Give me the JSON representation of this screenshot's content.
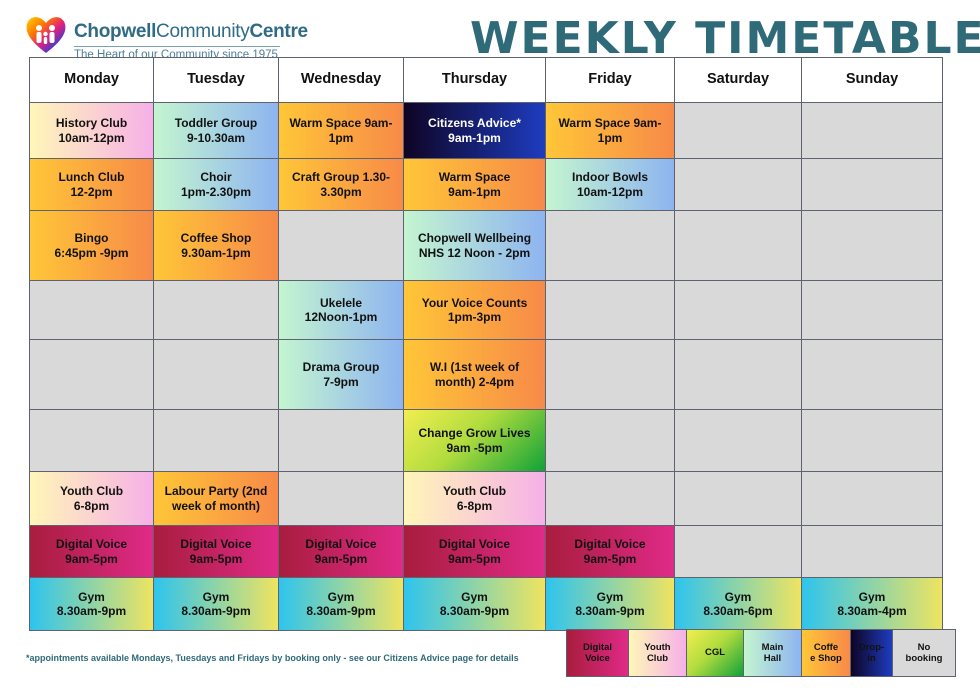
{
  "header": {
    "logo_name_bold": "Chopwell",
    "logo_name_rest": "Community",
    "logo_name_end": "Centre",
    "logo_tagline": "The Heart of our Community since 1975",
    "title": "WEEKLY TIMETABLE"
  },
  "timetable": {
    "days": [
      "Monday",
      "Tuesday",
      "Wednesday",
      "Thursday",
      "Friday",
      "Saturday",
      "Sunday"
    ],
    "rows": [
      [
        [
          "History Club\n10am-12pm",
          "youth"
        ],
        [
          "Toddler Group\n9-10.30am",
          "main"
        ],
        [
          "Warm Space 9am-\n1pm",
          "coffee"
        ],
        [
          "Citizens Advice*\n9am-1pm",
          "dropin"
        ],
        [
          "Warm Space 9am-\n1pm",
          "coffee"
        ],
        [
          "",
          "empty"
        ],
        [
          "",
          "empty"
        ]
      ],
      [
        [
          "Lunch Club\n12-2pm",
          "coffee"
        ],
        [
          "Choir\n1pm-2.30pm",
          "main"
        ],
        [
          "Craft Group 1.30-\n3.30pm",
          "coffee"
        ],
        [
          "Warm Space\n9am-1pm",
          "coffee"
        ],
        [
          "Indoor Bowls\n10am-12pm",
          "main"
        ],
        [
          "",
          "empty"
        ],
        [
          "",
          "empty"
        ]
      ],
      [
        [
          "Bingo\n6:45pm -9pm",
          "coffee"
        ],
        [
          "Coffee Shop\n9.30am-1pm",
          "coffee"
        ],
        [
          "",
          "empty"
        ],
        [
          "Chopwell Wellbeing\nNHS 12 Noon - 2pm",
          "main"
        ],
        [
          "",
          "empty"
        ],
        [
          "",
          "empty"
        ],
        [
          "",
          "empty"
        ]
      ],
      [
        [
          "",
          "empty"
        ],
        [
          "",
          "empty"
        ],
        [
          "Ukelele\n12Noon-1pm",
          "main"
        ],
        [
          "Your Voice Counts\n1pm-3pm",
          "coffee"
        ],
        [
          "",
          "empty"
        ],
        [
          "",
          "empty"
        ],
        [
          "",
          "empty"
        ]
      ],
      [
        [
          "",
          "empty"
        ],
        [
          "",
          "empty"
        ],
        [
          "Drama Group\n7-9pm",
          "main"
        ],
        [
          "W.I (1st week of\nmonth)  2-4pm",
          "coffee"
        ],
        [
          "",
          "empty"
        ],
        [
          "",
          "empty"
        ],
        [
          "",
          "empty"
        ]
      ],
      [
        [
          "",
          "empty"
        ],
        [
          "",
          "empty"
        ],
        [
          "",
          "empty"
        ],
        [
          "Change Grow Lives\n9am -5pm",
          "cgl"
        ],
        [
          "",
          "empty"
        ],
        [
          "",
          "empty"
        ],
        [
          "",
          "empty"
        ]
      ],
      [
        [
          "Youth Club\n6-8pm",
          "youth"
        ],
        [
          "Labour Party (2nd\nweek of month)",
          "coffee"
        ],
        [
          "",
          "empty"
        ],
        [
          "Youth Club\n6-8pm",
          "youth"
        ],
        [
          "",
          "empty"
        ],
        [
          "",
          "empty"
        ],
        [
          "",
          "empty"
        ]
      ],
      [
        [
          "Digital Voice\n9am-5pm",
          "digital"
        ],
        [
          "Digital Voice\n9am-5pm",
          "digital"
        ],
        [
          "Digital Voice\n9am-5pm",
          "digital"
        ],
        [
          "Digital Voice\n9am-5pm",
          "digital"
        ],
        [
          "Digital Voice\n9am-5pm",
          "digital"
        ],
        [
          "",
          "empty"
        ],
        [
          "",
          "empty"
        ]
      ],
      [
        [
          "Gym\n8.30am-9pm",
          "gym"
        ],
        [
          "Gym\n8.30am-9pm",
          "gym"
        ],
        [
          "Gym\n8.30am-9pm",
          "gym"
        ],
        [
          "Gym\n8.30am-9pm",
          "gym"
        ],
        [
          "Gym\n8.30am-9pm",
          "gym"
        ],
        [
          "Gym\n8.30am-6pm",
          "gym"
        ],
        [
          "Gym\n8.30am-4pm",
          "gym"
        ]
      ]
    ]
  },
  "footnote": "*appointments available Mondays, Tuesdays and Fridays by booking only - see our Citizens Advice page for details",
  "legend": [
    {
      "label": "Digital\nVoice",
      "category": "digital"
    },
    {
      "label": "Youth\nClub",
      "category": "youth"
    },
    {
      "label": "CGL",
      "category": "cgl"
    },
    {
      "label": "Main\nHall",
      "category": "main"
    },
    {
      "label": "Coffe\ne Shop",
      "category": "coffee"
    },
    {
      "label": "Drop-\nin",
      "category": "dropin"
    },
    {
      "label": "No\nbooking",
      "category": "empty"
    }
  ],
  "colors": {
    "title": "#2f6a78",
    "digital": [
      "#a81d3e",
      "#e02a88"
    ],
    "youth": [
      "#fff6b8",
      "#f6b0e8"
    ],
    "cgl": [
      "#f1ee50",
      "#11a238"
    ],
    "main": [
      "#c4f5d0",
      "#8eb4f0"
    ],
    "coffee": [
      "#ffc638",
      "#f78a48"
    ],
    "dropin": [
      "#0e0424",
      "#1e3cc0"
    ],
    "empty": "#d9d9d9"
  }
}
